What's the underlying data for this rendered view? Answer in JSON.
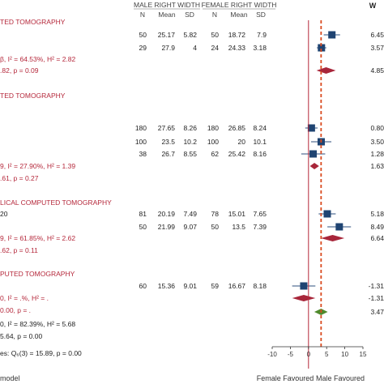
{
  "chart_data": {
    "type": "forest",
    "title": "",
    "xlabel": "",
    "ylabel": "",
    "xlim": [
      -10,
      15
    ],
    "xticks": [
      "-10",
      "-5",
      "0",
      "5",
      "10",
      "15"
    ],
    "reference_line": 0,
    "overall_line": 3.47,
    "groups": {
      "male_label": "MALE RIGHT WIDTH",
      "female_label": "FEMALE RIGHT WIDTH"
    },
    "columns": {
      "n": "N",
      "mean": "Mean",
      "sd": "SD",
      "effect": "W"
    },
    "footer_left": "Female Favoured",
    "footer_right": "Male Favoured",
    "bottom_left": "model",
    "subgroups": [
      {
        "header": "TED TOMOGRAPHY",
        "studies": [
          {
            "label": "",
            "m_n": "50",
            "m_mean": "25.17",
            "m_sd": "5.82",
            "f_n": "50",
            "f_mean": "18.72",
            "f_sd": "7.9",
            "est": 6.45,
            "lo": 4.2,
            "hi": 8.7,
            "effect_label": "6.45"
          },
          {
            "label": "",
            "m_n": "29",
            "m_mean": "27.9",
            "m_sd": "4",
            "f_n": "24",
            "f_mean": "24.33",
            "f_sd": "3.18",
            "est": 3.57,
            "lo": 2.3,
            "hi": 4.9,
            "effect_label": "3.57"
          }
        ],
        "het": "β, I² = 64.53%, H² = 2.82",
        "test": ".82, p = 0.09",
        "pooled": {
          "est": 4.85,
          "lo": 2.2,
          "hi": 7.5,
          "label": "4.85"
        }
      },
      {
        "header": "TED TOMOGRAPHY",
        "studies": [
          {
            "label": "",
            "m_n": "180",
            "m_mean": "27.65",
            "m_sd": "8.26",
            "f_n": "180",
            "f_mean": "26.85",
            "f_sd": "8.24",
            "est": 0.8,
            "lo": -0.9,
            "hi": 2.5,
            "effect_label": "0.80"
          },
          {
            "label": "",
            "m_n": "100",
            "m_mean": "23.5",
            "m_sd": "10.2",
            "f_n": "100",
            "f_mean": "20",
            "f_sd": "10.1",
            "est": 3.5,
            "lo": 0.7,
            "hi": 6.3,
            "effect_label": "3.50"
          },
          {
            "label": "",
            "m_n": "38",
            "m_mean": "26.7",
            "m_sd": "8.55",
            "f_n": "62",
            "f_mean": "25.42",
            "f_sd": "8.16",
            "est": 1.28,
            "lo": -2.0,
            "hi": 4.6,
            "effect_label": "1.28"
          }
        ],
        "het": "9, I² = 27.90%, H² = 1.39",
        "test": ".61, p = 0.27",
        "pooled": {
          "est": 1.63,
          "lo": 0.4,
          "hi": 2.9,
          "label": "1.63"
        }
      },
      {
        "header": "LICAL COMPUTED TOMOGRAPHY",
        "studies": [
          {
            "label": "20",
            "m_n": "81",
            "m_mean": "20.19",
            "m_sd": "7.49",
            "f_n": "78",
            "f_mean": "15.01",
            "f_sd": "7.65",
            "est": 5.18,
            "lo": 2.8,
            "hi": 7.5,
            "effect_label": "5.18"
          },
          {
            "label": "",
            "m_n": "50",
            "m_mean": "21.99",
            "m_sd": "9.07",
            "f_n": "50",
            "f_mean": "13.5",
            "f_sd": "7.39",
            "est": 8.49,
            "lo": 5.2,
            "hi": 11.7,
            "effect_label": "8.49"
          }
        ],
        "het": "9, I² = 61.85%, H² = 2.62",
        "test": ".62, p = 0.11",
        "pooled": {
          "est": 6.64,
          "lo": 3.4,
          "hi": 9.9,
          "label": "6.64"
        }
      },
      {
        "header": "PUTED TOMOGRAPHY",
        "studies": [
          {
            "label": "",
            "m_n": "60",
            "m_mean": "15.36",
            "m_sd": "9.01",
            "f_n": "59",
            "f_mean": "16.67",
            "f_sd": "8.18",
            "est": -1.31,
            "lo": -4.5,
            "hi": 1.9,
            "effect_label": "-1.31"
          }
        ],
        "het": "0, I² = .%, H² = .",
        "test": "0.00, p = .",
        "pooled": {
          "est": -1.31,
          "lo": -4.5,
          "hi": 1.9,
          "label": "-1.31"
        }
      }
    ],
    "overall": {
      "est": 3.47,
      "lo": 1.6,
      "hi": 5.3,
      "label": "3.47"
    },
    "overall_het": "0, I² = 82.39%, H² = 5.68",
    "overall_test": "5.64, p = 0.00",
    "between_test": "es: Q₆(3) = 15.89, p = 0.00"
  }
}
